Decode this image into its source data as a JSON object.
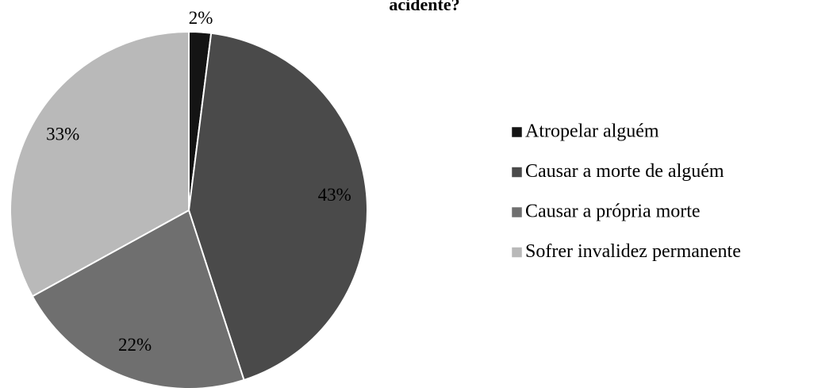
{
  "chart_data": {
    "type": "pie",
    "title": "acidente?",
    "categories": [
      "Atropelar alguém",
      "Causar a morte de alguém",
      "Causar a própria morte",
      "Sofrer invalidez permanente"
    ],
    "values": [
      2,
      43,
      22,
      33
    ],
    "value_labels": [
      "2%",
      "43%",
      "22%",
      "33%"
    ],
    "colors": [
      "#141414",
      "#4a4a4a",
      "#6f6f6f",
      "#b9b9b9"
    ],
    "legend": "right"
  }
}
